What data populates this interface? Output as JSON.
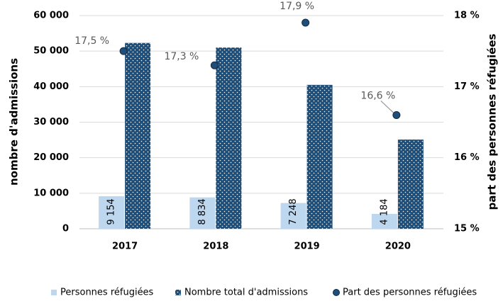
{
  "chart_data": {
    "type": "bar",
    "categories": [
      "2017",
      "2018",
      "2019",
      "2020"
    ],
    "series": [
      {
        "name": "Personnes réfugiées",
        "color": "#bdd7ee",
        "values": [
          9154,
          8834,
          7248,
          4184
        ],
        "value_labels": [
          "9 154",
          "8 834",
          "7 248",
          "4 184"
        ]
      },
      {
        "name": "Nombre total d'admissions",
        "color": "#1f4e79",
        "values": [
          52300,
          51000,
          40500,
          25100
        ]
      },
      {
        "name": "Part des personnes réfugiées",
        "color": "#1f4e79",
        "axis": "y2",
        "values": [
          17.5,
          17.3,
          17.9,
          16.6
        ],
        "value_labels": [
          "17,5 %",
          "17,3 %",
          "17,9 %",
          "16,6 %"
        ]
      }
    ],
    "ylabel": "nombre d'admissions",
    "y2label": "part des personnes réfugiées",
    "ylim": [
      0,
      60000
    ],
    "yticks": [
      0,
      {
        "value": 10000,
        "label": "10 000"
      },
      {
        "value": 20000,
        "label": "20 000"
      },
      {
        "value": 30000,
        "label": "30 000"
      },
      {
        "value": 40000,
        "label": "40 000"
      },
      {
        "value": 50000,
        "label": "50 000"
      },
      {
        "value": 60000,
        "label": "60 000"
      }
    ],
    "y2lim": [
      15,
      18
    ],
    "y2ticks": [
      {
        "value": 15,
        "label": "15 %"
      },
      {
        "value": 16,
        "label": "16 %"
      },
      {
        "value": 17,
        "label": "17 %"
      },
      {
        "value": 18,
        "label": "18 %"
      }
    ],
    "grid": true,
    "legend": "bottom"
  }
}
